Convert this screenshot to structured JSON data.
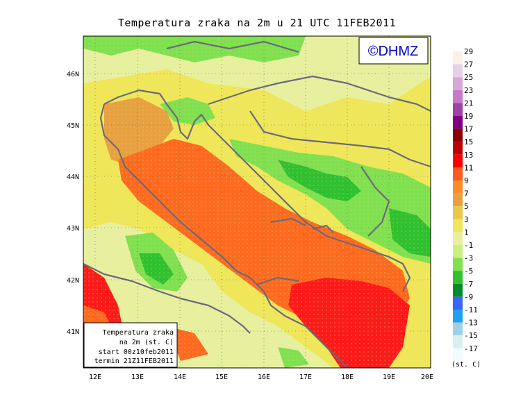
{
  "title": "Temperatura zraka na 2m u 21 UTC 11FEB2011",
  "logo": "©DHMZ",
  "axes": {
    "lon_labels": [
      "12E",
      "13E",
      "14E",
      "15E",
      "16E",
      "17E",
      "18E",
      "19E",
      "20E"
    ],
    "lat_labels": [
      "41N",
      "42N",
      "43N",
      "44N",
      "45N",
      "46N"
    ]
  },
  "info_box": {
    "line1": "Temperatura zraka",
    "line2": "na 2m (st. C)",
    "line3": "start 00z10feb2011",
    "line4": "termin 21Z11FEB2011"
  },
  "colorbar": {
    "unit_label": "(st. C)",
    "levels": [
      {
        "label": "29",
        "color": "#fdf0e6"
      },
      {
        "label": "27",
        "color": "#e8d0e8"
      },
      {
        "label": "25",
        "color": "#d8a8d8"
      },
      {
        "label": "23",
        "color": "#c878c8"
      },
      {
        "label": "21",
        "color": "#a040a8"
      },
      {
        "label": "19",
        "color": "#800080"
      },
      {
        "label": "17",
        "color": "#8b0000"
      },
      {
        "label": "15",
        "color": "#c00000"
      },
      {
        "label": "13",
        "color": "#ff0000"
      },
      {
        "label": "11",
        "color": "#ff5a1e"
      },
      {
        "label": "9",
        "color": "#ff8c28"
      },
      {
        "label": "7",
        "color": "#e8a040"
      },
      {
        "label": "5",
        "color": "#e8c848"
      },
      {
        "label": "3",
        "color": "#f0e65a"
      },
      {
        "label": "1",
        "color": "#e8f0a0"
      },
      {
        "label": "-1",
        "color": "#c8f080"
      },
      {
        "label": "-3",
        "color": "#80e050"
      },
      {
        "label": "-5",
        "color": "#30c030"
      },
      {
        "label": "-7",
        "color": "#008c28"
      },
      {
        "label": "-9",
        "color": "#3c64ff"
      },
      {
        "label": "-11",
        "color": "#20a0f0"
      },
      {
        "label": "-13",
        "color": "#a0d0e8"
      },
      {
        "label": "-15",
        "color": "#d8f0f0"
      },
      {
        "label": "-17",
        "color": "#f0fcff"
      }
    ]
  },
  "colors": {
    "sea_warm": "#ff6a20",
    "sea_hot": "#ff1a1a",
    "land_yellow": "#f0e65a",
    "land_pale": "#e8f0a0",
    "land_green": "#80e050",
    "land_dkgreen": "#30c030",
    "coast": "#6a6a7a"
  }
}
